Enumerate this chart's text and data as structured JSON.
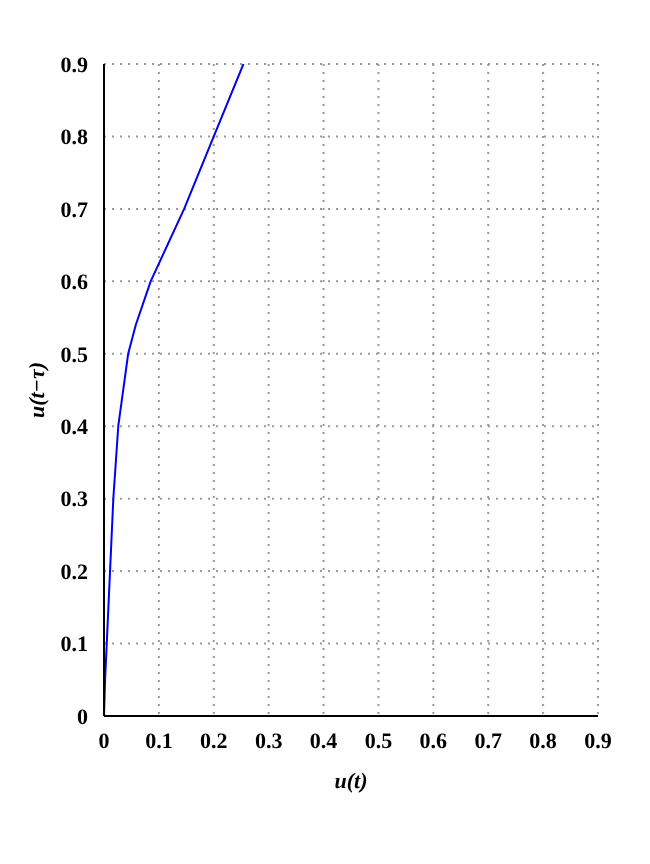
{
  "chart_data": {
    "type": "line",
    "xlabel": "u(t)",
    "ylabel": "u(t−τ)",
    "x": [
      0,
      0.002,
      0.005,
      0.011,
      0.017,
      0.026,
      0.044,
      0.058,
      0.085,
      0.146,
      0.2,
      0.254
    ],
    "series": [
      {
        "color": "#0000ff",
        "values": [
          0,
          0.05,
          0.1,
          0.2,
          0.3,
          0.4,
          0.5,
          0.54,
          0.6,
          0.7,
          0.8,
          0.9
        ]
      }
    ],
    "xlim": [
      0,
      0.9
    ],
    "ylim": [
      0,
      0.9
    ],
    "xticks": [
      0,
      0.1,
      0.2,
      0.3,
      0.4,
      0.5,
      0.6,
      0.7,
      0.8,
      0.9
    ],
    "yticks": [
      0,
      0.1,
      0.2,
      0.3,
      0.4,
      0.5,
      0.6,
      0.7,
      0.8,
      0.9
    ],
    "grid": true,
    "marker": "none",
    "line_style": "solid"
  }
}
